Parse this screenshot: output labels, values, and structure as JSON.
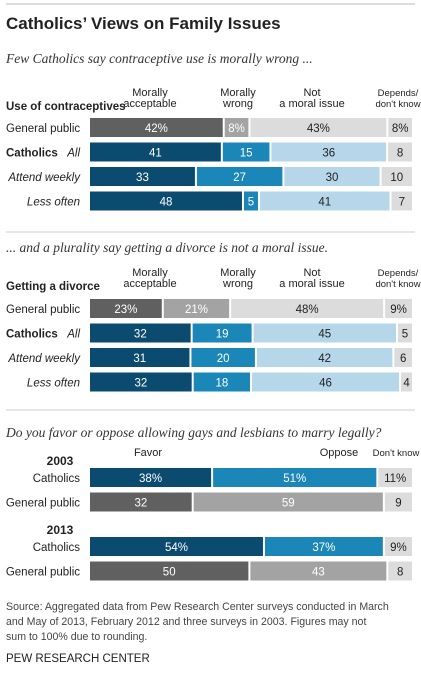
{
  "title": "Catholics’ Views on Family Issues",
  "colors": {
    "dark_blue": "#0b4b6f",
    "mid_blue": "#1b86b8",
    "light_blue": "#b6d7ea",
    "dark_gray": "#606060",
    "mid_gray": "#a3a3a3",
    "light_gray": "#dcdcdc"
  },
  "chart_data": [
    {
      "type": "bar",
      "orientation": "horizontal",
      "stacked": true,
      "subtitle": "Few Catholics say contraceptive use is morally wrong ...",
      "row_group_label": "Use of contraceptives",
      "series_names": [
        "Morally acceptable",
        "Morally wrong",
        "Not a moral issue",
        "Depends/ don't know"
      ],
      "series_header_lines": [
        [
          "Morally",
          "acceptable"
        ],
        [
          "Morally",
          "wrong"
        ],
        [
          "Not",
          "a moral issue"
        ],
        [
          "Depends/",
          "don't know"
        ]
      ],
      "rows": [
        {
          "label": "General public",
          "values": [
            42,
            8,
            43,
            8
          ],
          "display": [
            "42%",
            "8%",
            "43%",
            "8%"
          ]
        },
        {
          "label": "Catholics",
          "sublabel": "All",
          "values": [
            41,
            15,
            36,
            8
          ],
          "display": [
            "41",
            "15",
            "36",
            "8"
          ]
        },
        {
          "label": "Attend weekly",
          "values": [
            33,
            27,
            30,
            10
          ],
          "display": [
            "33",
            "27",
            "30",
            "10"
          ]
        },
        {
          "label": "Less often",
          "values": [
            48,
            5,
            41,
            7
          ],
          "display": [
            "48",
            "5",
            "41",
            "7"
          ]
        }
      ]
    },
    {
      "type": "bar",
      "orientation": "horizontal",
      "stacked": true,
      "subtitle": "... and a plurality say getting a divorce is not a moral issue.",
      "row_group_label": "Getting a divorce",
      "series_names": [
        "Morally acceptable",
        "Morally wrong",
        "Not a moral issue",
        "Depends/ don't know"
      ],
      "series_header_lines": [
        [
          "Morally",
          "acceptable"
        ],
        [
          "Morally",
          "wrong"
        ],
        [
          "Not",
          "a moral issue"
        ],
        [
          "Depends/",
          "don't know"
        ]
      ],
      "rows": [
        {
          "label": "General public",
          "values": [
            23,
            21,
            48,
            9
          ],
          "display": [
            "23%",
            "21%",
            "48%",
            "9%"
          ]
        },
        {
          "label": "Catholics",
          "sublabel": "All",
          "values": [
            32,
            19,
            45,
            5
          ],
          "display": [
            "32",
            "19",
            "45",
            "5"
          ]
        },
        {
          "label": "Attend weekly",
          "values": [
            31,
            20,
            42,
            6
          ],
          "display": [
            "31",
            "20",
            "42",
            "6"
          ]
        },
        {
          "label": "Less often",
          "values": [
            32,
            18,
            46,
            4
          ],
          "display": [
            "32",
            "18",
            "46",
            "4"
          ]
        }
      ]
    },
    {
      "type": "bar",
      "orientation": "horizontal",
      "stacked": true,
      "subtitle": "Do you favor or oppose allowing gays and lesbians to marry legally?",
      "series_names": [
        "Favor",
        "Oppose",
        "Don't know"
      ],
      "groups": [
        {
          "year": "2003",
          "rows": [
            {
              "label": "Catholics",
              "values": [
                38,
                51,
                11
              ],
              "display": [
                "38%",
                "51%",
                "11%"
              ]
            },
            {
              "label": "General public",
              "values": [
                32,
                59,
                9
              ],
              "display": [
                "32",
                "59",
                "9"
              ]
            }
          ]
        },
        {
          "year": "2013",
          "rows": [
            {
              "label": "Catholics",
              "values": [
                54,
                37,
                9
              ],
              "display": [
                "54%",
                "37%",
                "9%"
              ]
            },
            {
              "label": "General public",
              "values": [
                50,
                43,
                8
              ],
              "display": [
                "50",
                "43",
                "8"
              ]
            }
          ]
        }
      ]
    }
  ],
  "footer": {
    "source_lines": [
      "Source: Aggregated data from Pew Research Center surveys conducted in March",
      "and May of 2013, February 2012 and three surveys in 2003. Figures may not",
      "sum to 100% due to rounding."
    ],
    "credit": "PEW RESEARCH CENTER"
  }
}
